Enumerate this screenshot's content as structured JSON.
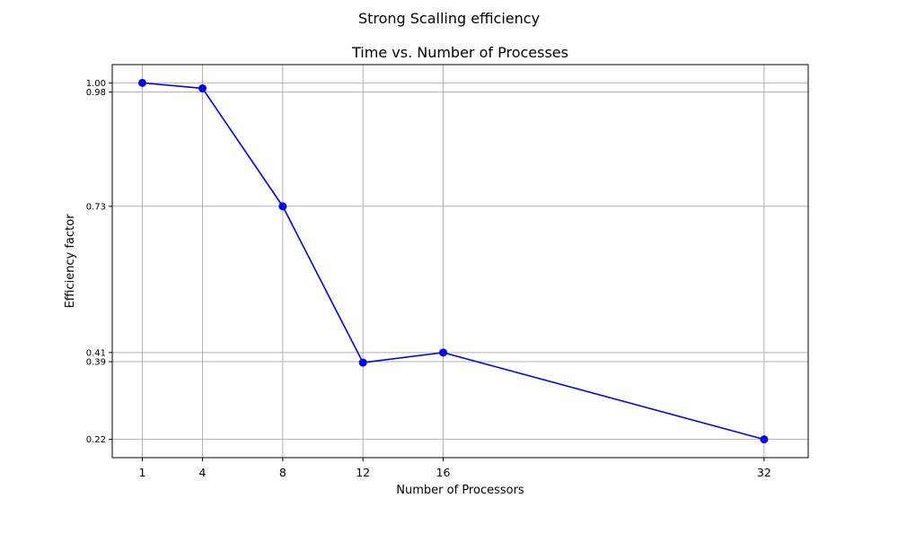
{
  "figure": {
    "suptitle": "Strong Scalling efficiency"
  },
  "chart_data": {
    "type": "line",
    "title": "Time vs. Number of Processes",
    "xlabel": "Number of Processors",
    "ylabel": "Efficiency factor",
    "x": [
      1,
      4,
      8,
      12,
      16,
      32
    ],
    "xticks": [
      "1",
      "4",
      "8",
      "12",
      "16",
      "32"
    ],
    "yticks": [
      "0.22",
      "0.39",
      "0.41",
      "0.73",
      "0.98",
      "1.00"
    ],
    "xlim": [
      -0.5,
      34.2
    ],
    "ylim": [
      0.18,
      1.04
    ],
    "grid": true,
    "series": [
      {
        "values": [
          1.0,
          0.988,
          0.73,
          0.388,
          0.41,
          0.22
        ],
        "color": "#0000ff",
        "marker": "circle"
      }
    ]
  }
}
